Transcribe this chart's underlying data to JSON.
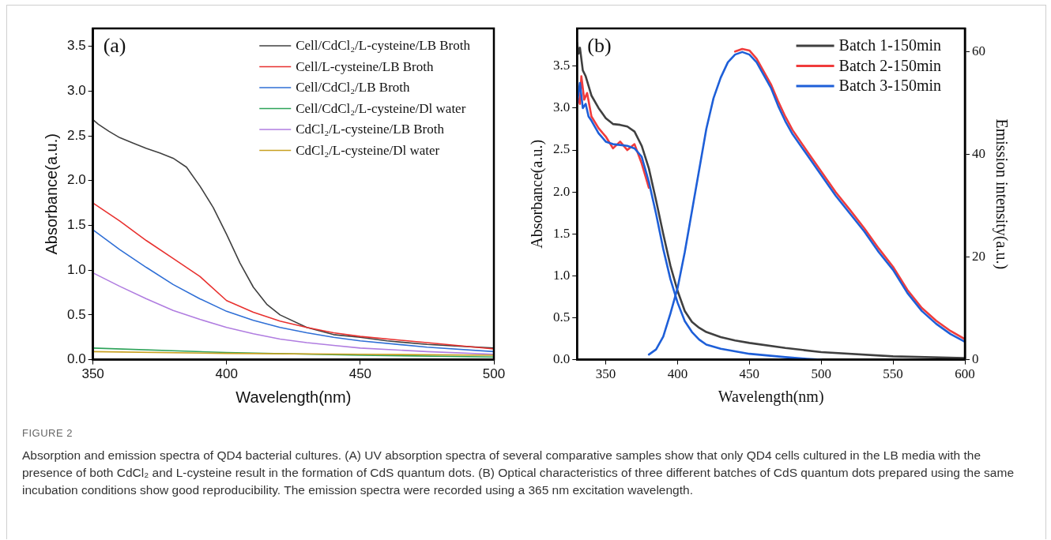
{
  "chart_data": [
    {
      "type": "line",
      "title": "(a)",
      "xlabel": "Wavelength(nm)",
      "ylabel": "Absorbance(a.u.)",
      "xlim": [
        350,
        500
      ],
      "xticks": [
        350,
        400,
        450,
        500
      ],
      "ylim": [
        0,
        3.7
      ],
      "yticks": [
        {
          "value": 0,
          "label": "0.0"
        },
        0.5,
        {
          "value": 1,
          "label": "1.0"
        },
        1.5,
        {
          "value": 2,
          "label": "2.0"
        },
        2.5,
        {
          "value": 3,
          "label": "3.0"
        },
        3.5
      ],
      "legend": "top right",
      "marker": "none",
      "line_style": "solid",
      "series": [
        {
          "name": "Cell/CdCl₂/L-cysteine/LB Broth",
          "color": "#404040",
          "x": [
            350,
            352,
            356,
            360,
            365,
            370,
            375,
            380,
            385,
            390,
            395,
            400,
            405,
            410,
            415,
            420,
            430,
            440,
            450,
            460,
            475,
            500
          ],
          "values": [
            2.68,
            2.63,
            2.55,
            2.48,
            2.42,
            2.36,
            2.31,
            2.25,
            2.15,
            1.94,
            1.7,
            1.4,
            1.08,
            0.81,
            0.62,
            0.5,
            0.36,
            0.28,
            0.25,
            0.21,
            0.17,
            0.13
          ]
        },
        {
          "name": "Cell/L-cysteine/LB Broth",
          "color": "#e8312f",
          "x": [
            350,
            360,
            370,
            380,
            390,
            400,
            410,
            420,
            430,
            440,
            450,
            475,
            500
          ],
          "values": [
            1.75,
            1.55,
            1.33,
            1.13,
            0.93,
            0.66,
            0.53,
            0.43,
            0.36,
            0.3,
            0.26,
            0.19,
            0.12
          ]
        },
        {
          "name": "Cell/CdCl₂/LB Broth",
          "color": "#2f6fd6",
          "x": [
            350,
            360,
            370,
            380,
            390,
            400,
            410,
            420,
            430,
            440,
            450,
            475,
            500
          ],
          "values": [
            1.45,
            1.23,
            1.03,
            0.84,
            0.68,
            0.54,
            0.44,
            0.36,
            0.3,
            0.25,
            0.21,
            0.14,
            0.09
          ]
        },
        {
          "name": "Cell/CdCl₂/L-cysteine/Dl water",
          "color": "#2ea35a",
          "x": [
            350,
            400,
            450,
            500
          ],
          "values": [
            0.13,
            0.08,
            0.05,
            0.03
          ]
        },
        {
          "name": "CdCl₂/L-cysteine/LB Broth",
          "color": "#b07de0",
          "x": [
            350,
            360,
            370,
            380,
            390,
            400,
            410,
            420,
            430,
            440,
            450,
            475,
            500
          ],
          "values": [
            0.97,
            0.82,
            0.68,
            0.55,
            0.45,
            0.36,
            0.29,
            0.23,
            0.19,
            0.16,
            0.13,
            0.09,
            0.06
          ]
        },
        {
          "name": "CdCl₂/L-cysteine/Dl water",
          "color": "#c8a020",
          "x": [
            350,
            400,
            450,
            500
          ],
          "values": [
            0.09,
            0.07,
            0.06,
            0.05
          ]
        }
      ]
    },
    {
      "type": "line",
      "title": "(b)",
      "xlabel": "Wavelength(nm)",
      "ylabel": "Absorbance(a.u.)",
      "y2label": "Emission intensity(a.u.)",
      "xlim": [
        330,
        600
      ],
      "xticks": [
        350,
        400,
        450,
        500,
        550,
        600
      ],
      "ylim": [
        0,
        3.95
      ],
      "yticks": [
        {
          "value": 0,
          "label": "0.0"
        },
        0.5,
        {
          "value": 1,
          "label": "1.0"
        },
        1.5,
        {
          "value": 2,
          "label": "2.0"
        },
        2.5,
        {
          "value": 3,
          "label": "3.0"
        },
        3.5
      ],
      "y2lim": [
        0,
        64.6
      ],
      "y2ticks": [
        0,
        20,
        40,
        60
      ],
      "legend": "top right",
      "marker": "none",
      "line_style": "solid",
      "annotations": [
        "FIGURE 2",
        "Absorption and emission spectra of QD4 bacterial cultures. (A) UV absorption spectra of several comparative samples show that only QD4 cells cultured in the LB media with the presence of both CdCl₂ and L-cysteine result in the formation of CdS quantum dots. (B) Optical characteristics of three different batches of CdS quantum dots prepared using the same incubation conditions show good reproducibility. The emission spectra were recorded using a 365 nm excitation wavelength."
      ],
      "series": [
        {
          "name": "Batch 1-150min",
          "color": "#404040",
          "x": [
            330,
            331,
            332,
            334,
            336,
            340,
            345,
            350,
            355,
            360,
            365,
            370,
            375,
            380,
            385,
            390,
            395,
            400,
            405,
            410,
            415,
            420,
            430,
            440,
            450,
            475,
            500,
            550,
            600
          ],
          "values": [
            3.78,
            3.65,
            3.72,
            3.45,
            3.38,
            3.15,
            3.0,
            2.88,
            2.81,
            2.8,
            2.78,
            2.72,
            2.55,
            2.28,
            1.9,
            1.5,
            1.12,
            0.82,
            0.58,
            0.45,
            0.38,
            0.33,
            0.27,
            0.23,
            0.2,
            0.14,
            0.09,
            0.04,
            0.02
          ]
        },
        {
          "name": "Batch 2-150min",
          "color": "#f03c3c",
          "x": [
            330,
            332,
            333,
            335,
            337,
            340,
            345,
            350,
            355,
            360,
            365,
            370,
            375,
            380
          ],
          "values": [
            3.15,
            3.05,
            3.38,
            3.1,
            3.18,
            2.9,
            2.76,
            2.66,
            2.52,
            2.6,
            2.5,
            2.57,
            2.34,
            2.05
          ]
        },
        {
          "name": "Batch 3-150min",
          "color": "#1e5fd8",
          "x": [
            330,
            332,
            334,
            336,
            338,
            340,
            345,
            350,
            355,
            360,
            365,
            370,
            375,
            380,
            385,
            390,
            395,
            400,
            405,
            410,
            415,
            420,
            430,
            440,
            450,
            475,
            490,
            500
          ],
          "values": [
            3.05,
            3.3,
            3.0,
            3.05,
            2.9,
            2.85,
            2.7,
            2.6,
            2.57,
            2.56,
            2.55,
            2.52,
            2.42,
            2.12,
            1.74,
            1.32,
            0.96,
            0.68,
            0.46,
            0.33,
            0.24,
            0.18,
            0.13,
            0.1,
            0.07,
            0.03,
            0.01,
            0
          ]
        },
        {
          "color": "#f03c3c",
          "axis": "y2",
          "x": [
            440,
            445,
            450,
            455,
            460,
            465,
            470,
            475,
            480,
            490,
            500,
            510,
            520,
            530,
            540,
            550,
            560,
            570,
            580,
            590,
            600
          ],
          "values": [
            60.1,
            60.6,
            60.3,
            58.7,
            56.2,
            53.7,
            50.4,
            47.4,
            44.8,
            40.7,
            36.7,
            32.7,
            29.2,
            25.6,
            21.7,
            18.1,
            13.6,
            10.1,
            7.6,
            5.6,
            4.0
          ]
        },
        {
          "color": "#1e5fd8",
          "axis": "y2",
          "x": [
            380,
            385,
            390,
            395,
            400,
            405,
            410,
            415,
            420,
            425,
            430,
            435,
            440,
            445,
            450,
            455,
            460,
            465,
            470,
            475,
            480,
            490,
            500,
            510,
            520,
            530,
            540,
            550,
            560,
            570,
            580,
            590,
            600
          ],
          "values": [
            1.0,
            2.0,
            4.5,
            9,
            14,
            21,
            29,
            37,
            45,
            51,
            55,
            58,
            59.5,
            60,
            59.5,
            58,
            55.5,
            53,
            49.5,
            46.5,
            44,
            40,
            36,
            32,
            28.5,
            25,
            21,
            17.5,
            13,
            9.5,
            7,
            5,
            3.5
          ]
        }
      ]
    }
  ]
}
